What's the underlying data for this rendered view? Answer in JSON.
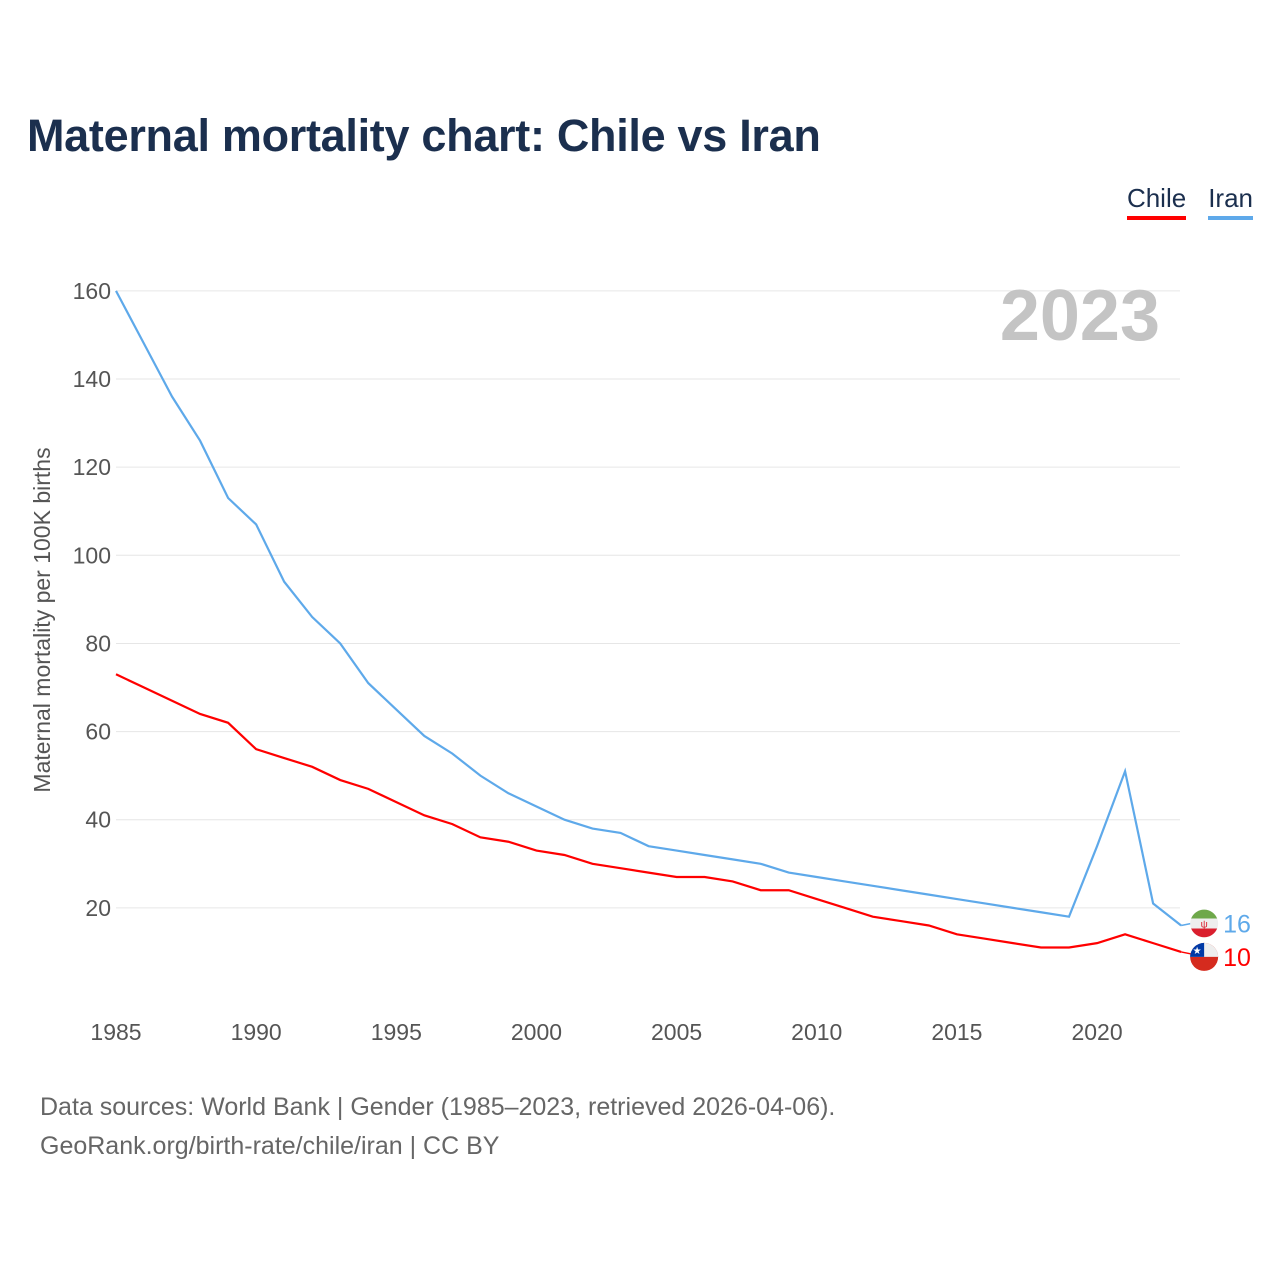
{
  "title": "Maternal mortality chart: Chile vs Iran",
  "year_label": "2023",
  "footer": {
    "line1": "Data sources: World Bank | Gender (1985–2023, retrieved 2026-04-06).",
    "line2": "GeoRank.org/birth-rate/chile/iran | CC BY"
  },
  "chart_data": {
    "type": "line",
    "title": "Maternal mortality chart: Chile vs Iran",
    "xlabel": "",
    "ylabel": "Maternal mortality per 100K births",
    "xlim": [
      1985,
      2023
    ],
    "ylim": [
      0,
      160
    ],
    "xticks": [
      "1985",
      "1990",
      "1995",
      "2000",
      "2005",
      "2010",
      "2015",
      "2020"
    ],
    "yticks": [
      "20",
      "40",
      "60",
      "80",
      "100",
      "120",
      "140",
      "160"
    ],
    "grid": true,
    "legend_position": "top-right",
    "x": [
      1985,
      1986,
      1987,
      1988,
      1989,
      1990,
      1991,
      1992,
      1993,
      1994,
      1995,
      1996,
      1997,
      1998,
      1999,
      2000,
      2001,
      2002,
      2003,
      2004,
      2005,
      2006,
      2007,
      2008,
      2009,
      2010,
      2011,
      2012,
      2013,
      2014,
      2015,
      2016,
      2017,
      2018,
      2019,
      2020,
      2021,
      2022,
      2023
    ],
    "series": [
      {
        "name": "Chile",
        "color": "#ff0000",
        "end_label": "10",
        "values": [
          73,
          70,
          67,
          64,
          62,
          56,
          54,
          52,
          49,
          47,
          44,
          41,
          39,
          36,
          35,
          33,
          32,
          30,
          29,
          28,
          27,
          27,
          26,
          24,
          24,
          22,
          20,
          18,
          17,
          16,
          14,
          13,
          12,
          11,
          11,
          12,
          14,
          12,
          10
        ]
      },
      {
        "name": "Iran",
        "color": "#5ea9ea",
        "end_label": "16",
        "values": [
          160,
          148,
          136,
          126,
          113,
          107,
          94,
          86,
          80,
          71,
          65,
          59,
          55,
          50,
          46,
          43,
          40,
          38,
          37,
          34,
          33,
          32,
          31,
          30,
          28,
          27,
          26,
          25,
          24,
          23,
          22,
          21,
          20,
          19,
          18,
          34,
          51,
          21,
          16
        ]
      }
    ]
  }
}
